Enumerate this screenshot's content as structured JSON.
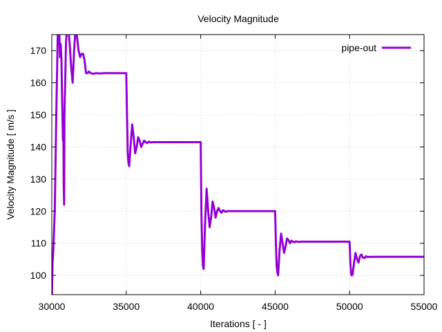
{
  "chart_data": {
    "type": "line",
    "title": "Velocity Magnitude",
    "xlabel": "Iterations [ - ]",
    "ylabel": "Velocity Magnitude [ m/s ]",
    "xlim": [
      30000,
      55000
    ],
    "ylim": [
      94,
      175
    ],
    "xticks": [
      30000,
      35000,
      40000,
      45000,
      50000,
      55000
    ],
    "yticks": [
      100,
      110,
      120,
      130,
      140,
      150,
      160,
      170
    ],
    "grid": true,
    "legend_position": "top-right",
    "series": [
      {
        "name": "pipe-out",
        "color": "#9400d3",
        "x": [
          30000,
          30050,
          30100,
          30200,
          30300,
          30400,
          30500,
          30550,
          30600,
          30650,
          30700,
          30750,
          30780,
          30800,
          30830,
          30850,
          30870,
          30900,
          30950,
          31000,
          31100,
          31200,
          31300,
          31400,
          31500,
          31600,
          31700,
          31800,
          31900,
          32000,
          32100,
          32200,
          32300,
          32400,
          32500,
          32600,
          32800,
          33000,
          33200,
          33500,
          34000,
          34500,
          35000,
          35050,
          35100,
          35150,
          35200,
          35300,
          35400,
          35500,
          35600,
          35700,
          35800,
          35900,
          36000,
          36100,
          36200,
          36300,
          36400,
          36500,
          36600,
          36700,
          36800,
          37000,
          37200,
          37500,
          38000,
          38500,
          39000,
          39500,
          40000,
          40050,
          40100,
          40150,
          40200,
          40300,
          40400,
          40500,
          40600,
          40700,
          40800,
          40900,
          41000,
          41100,
          41200,
          41300,
          41400,
          41500,
          41600,
          41700,
          41800,
          41900,
          42000,
          42200,
          42500,
          43000,
          43500,
          44000,
          44500,
          45000,
          45050,
          45100,
          45150,
          45200,
          45300,
          45400,
          45500,
          45600,
          45700,
          45800,
          45900,
          46000,
          46100,
          46200,
          46300,
          46400,
          46500,
          46600,
          46700,
          46800,
          47000,
          47500,
          48000,
          48500,
          49000,
          49500,
          50000,
          50050,
          50100,
          50150,
          50200,
          50300,
          50400,
          50500,
          50600,
          50700,
          50800,
          50900,
          51000,
          51100,
          51200,
          51300,
          51400,
          51500,
          51700,
          52000,
          52500,
          53000,
          53500,
          54000,
          54500,
          55000
        ],
        "y": [
          92,
          104,
          108,
          120,
          150,
          175,
          176,
          168,
          172,
          167,
          153,
          142,
          148,
          129,
          122,
          150,
          155,
          160,
          172,
          176,
          178,
          172,
          165,
          160,
          170,
          177,
          174,
          170,
          168,
          169,
          169,
          167,
          163,
          163,
          163.5,
          163,
          162.8,
          163,
          162.9,
          163,
          163,
          163,
          163,
          150,
          138,
          135,
          134,
          141,
          147,
          143,
          138,
          140,
          143,
          142,
          140,
          141,
          142,
          141.5,
          141.2,
          141.6,
          141.5,
          141.4,
          141.5,
          141.5,
          141.5,
          141.5,
          141.5,
          141.5,
          141.5,
          141.5,
          141.5,
          119,
          108,
          103,
          102,
          117,
          127,
          120,
          115,
          118,
          123,
          121,
          118,
          120,
          121,
          120,
          119.5,
          120.3,
          120,
          119.8,
          120,
          120,
          120,
          120,
          120,
          120,
          120,
          120,
          120,
          120,
          110,
          103,
          101,
          100,
          108,
          113,
          110,
          107,
          109,
          111.5,
          111,
          110,
          110.8,
          110.5,
          110.3,
          110.6,
          110.5,
          110.4,
          110.5,
          110.5,
          110.5,
          110.5,
          110.5,
          110.5,
          110.5,
          110.5,
          110.5,
          104,
          100.5,
          100,
          100.3,
          104,
          107,
          105,
          104,
          106,
          106.5,
          105.5,
          105.4,
          106,
          105.7,
          105.8,
          105.7,
          105.8,
          105.8,
          105.8,
          105.8,
          105.8,
          105.8,
          105.8,
          105.8,
          105.8
        ]
      }
    ]
  }
}
